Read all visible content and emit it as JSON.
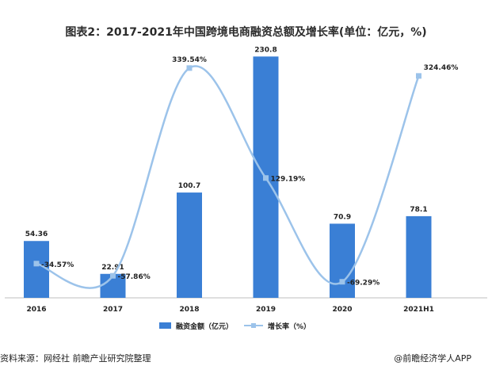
{
  "chart_data": {
    "type": "bar",
    "title": "图表2：2017-2021年中国跨境电商融资总额及增长率(单位：亿元，%)",
    "categories": [
      "2016",
      "2017",
      "2018",
      "2019",
      "2020",
      "2021H1"
    ],
    "series": [
      {
        "name": "融资金额（亿元）",
        "type": "bar",
        "axis": "left",
        "values": [
          54.36,
          22.91,
          100.7,
          230.8,
          70.9,
          78.1
        ],
        "labels": [
          "54.36",
          "22.91",
          "100.7",
          "230.8",
          "70.9",
          "78.1"
        ]
      },
      {
        "name": "增长率（%）",
        "type": "line",
        "axis": "right",
        "values": [
          -34.57,
          -57.86,
          339.54,
          129.19,
          -69.29,
          324.46
        ],
        "labels": [
          "-34.57%",
          "-57.86%",
          "339.54%",
          "129.19%",
          "-69.29%",
          "324.46%"
        ]
      }
    ],
    "ylim_left": [
      0,
      250
    ],
    "ylim_right": [
      -100,
      400
    ],
    "grid": false,
    "legend_position": "bottom",
    "colors": {
      "bar": "#3a7fd5",
      "line": "#9cc3ea"
    }
  },
  "footer": {
    "source": "资料来源：网经社 前瞻产业研究院整理",
    "brand": "@前瞻经济学人APP"
  }
}
